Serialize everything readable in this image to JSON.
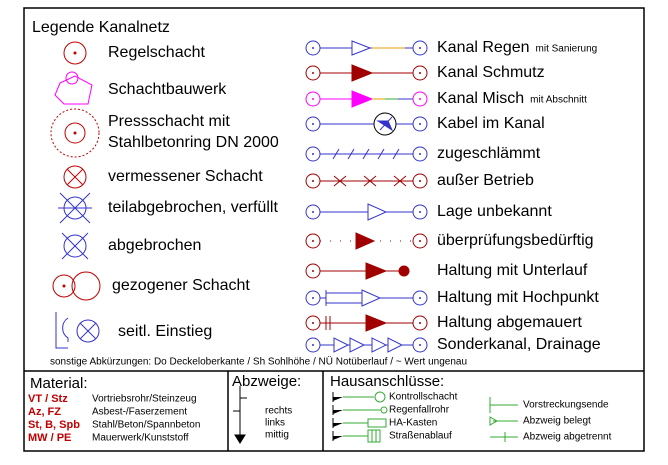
{
  "title": "Legende Kanalnetz",
  "left_items": [
    "Regelschacht",
    "Schachtbauwerk",
    "Pressschacht mit",
    "Stahlbetonring DN 2000",
    "vermessener Schacht",
    "teilabgebrochen, verfüllt",
    "abgebrochen",
    "gezogener Schacht",
    "seitl. Einstieg"
  ],
  "right_items": [
    {
      "label": "Kanal Regen",
      "note": "mit Sanierung"
    },
    {
      "label": "Kanal Schmutz"
    },
    {
      "label": "Kanal Misch",
      "note": "mit Abschnitt"
    },
    {
      "label": "Kabel im Kanal"
    },
    {
      "label": "zugeschlämmt"
    },
    {
      "label": "außer Betrieb"
    },
    {
      "label": "Lage unbekannt"
    },
    {
      "label": "überprüfungsbedürftig"
    },
    {
      "label": "Haltung mit Unterlauf"
    },
    {
      "label": "Haltung mit Hochpunkt"
    },
    {
      "label": "Haltung abgemauert"
    },
    {
      "label": "Sonderkanal, Drainage"
    }
  ],
  "footnote": "sonstige Abkürzungen: Do Deckeloberkante / Sh Sohlhöhe / NÜ Notüberlauf / ~ Wert ungenau",
  "material": {
    "title": "Material:",
    "rows": [
      {
        "code": "VT / Stz",
        "text": "Vortriebsrohr/Steinzeug"
      },
      {
        "code": "Az, FZ",
        "text": "Asbest-/Faserzement"
      },
      {
        "code": "St, B, Spb",
        "text": "Stahl/Beton/Spannbeton"
      },
      {
        "code": "MW / PE",
        "text": "Mauerwerk/Kunststoff"
      }
    ]
  },
  "abzweige": {
    "title": "Abzweige:",
    "items": [
      "rechts",
      "links",
      "mittig"
    ]
  },
  "hausanschluesse": {
    "title": "Hausanschlüsse:",
    "left": [
      "Kontrollschacht",
      "Regenfallrohr",
      "HA-Kasten",
      "Straßenablauf"
    ],
    "right": [
      "Vorstreckungsende",
      "Abzweig belegt",
      "Abzweig abgetrennt"
    ]
  }
}
